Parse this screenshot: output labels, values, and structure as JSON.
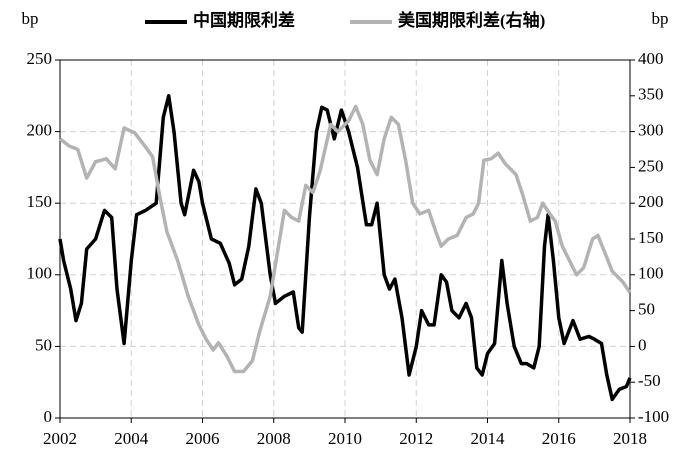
{
  "chart_data": {
    "type": "line",
    "y_label": "bp",
    "y2_label": "bp",
    "xlim": [
      2002,
      2018
    ],
    "xticks": [
      2002,
      2004,
      2006,
      2008,
      2010,
      2012,
      2014,
      2016,
      2018
    ],
    "ylim": [
      0,
      250
    ],
    "yticks": [
      0,
      50,
      100,
      150,
      200,
      250
    ],
    "y2lim": [
      -100,
      400
    ],
    "y2ticks": [
      -100,
      -50,
      0,
      50,
      100,
      150,
      200,
      250,
      300,
      350,
      400
    ],
    "grid": true,
    "legend": "top",
    "series": [
      {
        "name": "中国期限利差",
        "color": "#000000",
        "x": [
          2002.0,
          2002.1,
          2002.3,
          2002.45,
          2002.6,
          2002.75,
          2003.0,
          2003.25,
          2003.45,
          2003.6,
          2003.8,
          2004.0,
          2004.15,
          2004.4,
          2004.7,
          2004.9,
          2005.05,
          2005.2,
          2005.4,
          2005.5,
          2005.75,
          2005.9,
          2006.0,
          2006.25,
          2006.5,
          2006.75,
          2006.9,
          2007.1,
          2007.3,
          2007.5,
          2007.65,
          2007.9,
          2008.05,
          2008.3,
          2008.55,
          2008.7,
          2008.8,
          2009.0,
          2009.2,
          2009.35,
          2009.5,
          2009.7,
          2009.9,
          2010.1,
          2010.35,
          2010.6,
          2010.75,
          2010.9,
          2011.1,
          2011.25,
          2011.4,
          2011.6,
          2011.8,
          2012.0,
          2012.15,
          2012.35,
          2012.5,
          2012.7,
          2012.85,
          2013.0,
          2013.2,
          2013.4,
          2013.55,
          2013.7,
          2013.85,
          2014.0,
          2014.2,
          2014.4,
          2014.55,
          2014.75,
          2014.95,
          2015.1,
          2015.3,
          2015.45,
          2015.6,
          2015.7,
          2015.85,
          2016.0,
          2016.15,
          2016.4,
          2016.6,
          2016.85,
          2017.0,
          2017.2,
          2017.35,
          2017.5,
          2017.7,
          2017.9,
          2018.0
        ],
        "values": [
          125,
          110,
          90,
          68,
          80,
          118,
          125,
          145,
          140,
          90,
          52,
          110,
          142,
          145,
          150,
          210,
          225,
          200,
          150,
          142,
          173,
          165,
          150,
          125,
          122,
          108,
          93,
          97,
          120,
          160,
          150,
          100,
          80,
          85,
          88,
          63,
          60,
          140,
          200,
          217,
          215,
          195,
          215,
          200,
          175,
          135,
          135,
          150,
          100,
          90,
          97,
          70,
          30,
          50,
          75,
          65,
          65,
          100,
          95,
          75,
          70,
          80,
          70,
          35,
          30,
          45,
          52,
          110,
          80,
          50,
          38,
          38,
          35,
          50,
          120,
          142,
          110,
          70,
          52,
          68,
          55,
          57,
          55,
          52,
          30,
          13,
          20,
          22,
          28
        ]
      },
      {
        "name": "美国期限利差(右轴)",
        "color": "#b3b3b3",
        "axis": "y2",
        "x": [
          2002.0,
          2002.25,
          2002.5,
          2002.75,
          2003.0,
          2003.3,
          2003.55,
          2003.8,
          2004.1,
          2004.35,
          2004.6,
          2004.8,
          2005.0,
          2005.3,
          2005.6,
          2005.9,
          2006.1,
          2006.3,
          2006.45,
          2006.7,
          2006.9,
          2007.15,
          2007.4,
          2007.6,
          2007.9,
          2008.1,
          2008.3,
          2008.5,
          2008.7,
          2008.9,
          2009.1,
          2009.3,
          2009.6,
          2009.8,
          2010.1,
          2010.3,
          2010.5,
          2010.7,
          2010.9,
          2011.1,
          2011.3,
          2011.5,
          2011.7,
          2011.9,
          2012.1,
          2012.35,
          2012.55,
          2012.7,
          2012.9,
          2013.15,
          2013.4,
          2013.6,
          2013.75,
          2013.9,
          2014.1,
          2014.3,
          2014.5,
          2014.8,
          2015.0,
          2015.2,
          2015.4,
          2015.55,
          2015.75,
          2015.9,
          2016.1,
          2016.3,
          2016.5,
          2016.7,
          2016.95,
          2017.1,
          2017.3,
          2017.5,
          2017.8,
          2018.0
        ],
        "values": [
          290,
          280,
          275,
          235,
          258,
          262,
          248,
          305,
          298,
          282,
          265,
          210,
          160,
          120,
          70,
          30,
          10,
          -5,
          5,
          -15,
          -35,
          -35,
          -20,
          20,
          70,
          130,
          190,
          180,
          175,
          225,
          215,
          245,
          310,
          300,
          315,
          335,
          310,
          260,
          240,
          290,
          320,
          310,
          260,
          200,
          185,
          190,
          160,
          140,
          150,
          155,
          180,
          185,
          200,
          260,
          262,
          270,
          255,
          240,
          210,
          175,
          180,
          200,
          185,
          175,
          140,
          120,
          100,
          110,
          150,
          155,
          130,
          105,
          90,
          75
        ]
      }
    ]
  }
}
